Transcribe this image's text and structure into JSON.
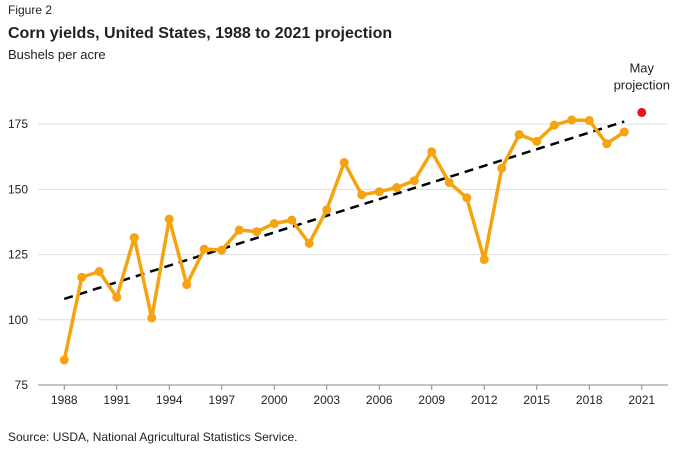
{
  "chart_data": {
    "type": "line",
    "figure_label": "Figure 2",
    "title": "Corn yields, United States, 1988 to 2021 projection",
    "subtitle": "Bushels per acre",
    "source": "Source: USDA, National Agricultural Statistics Service.",
    "x": [
      1988,
      1989,
      1990,
      1991,
      1992,
      1993,
      1994,
      1995,
      1996,
      1997,
      1998,
      1999,
      2000,
      2001,
      2002,
      2003,
      2004,
      2005,
      2006,
      2007,
      2008,
      2009,
      2010,
      2011,
      2012,
      2013,
      2014,
      2015,
      2016,
      2017,
      2018,
      2019,
      2020
    ],
    "series": [
      {
        "color": "#f5a30f",
        "values": [
          84.6,
          116.3,
          118.5,
          108.6,
          131.5,
          100.7,
          138.6,
          113.5,
          127.1,
          126.7,
          134.4,
          133.8,
          136.9,
          138.2,
          129.3,
          142.2,
          160.3,
          147.9,
          149.1,
          150.7,
          153.3,
          164.4,
          152.6,
          146.8,
          123.1,
          158.1,
          171.0,
          168.4,
          174.6,
          176.6,
          176.4,
          167.5,
          172.0
        ]
      }
    ],
    "trend": {
      "color": "#000000",
      "x": [
        1988,
        2020
      ],
      "values": [
        108,
        176
      ]
    },
    "projection": {
      "color": "#e8141e",
      "x": 2021,
      "value": 179.5,
      "label": [
        "May",
        "projection"
      ]
    },
    "xlim": [
      1986.5,
      2022.5
    ],
    "xticks": [
      1988,
      1991,
      1994,
      1997,
      2000,
      2003,
      2006,
      2009,
      2012,
      2015,
      2018,
      2021
    ],
    "ylim": [
      75,
      190
    ],
    "yticks": [
      75,
      100,
      125,
      150,
      175
    ],
    "grid": true
  }
}
